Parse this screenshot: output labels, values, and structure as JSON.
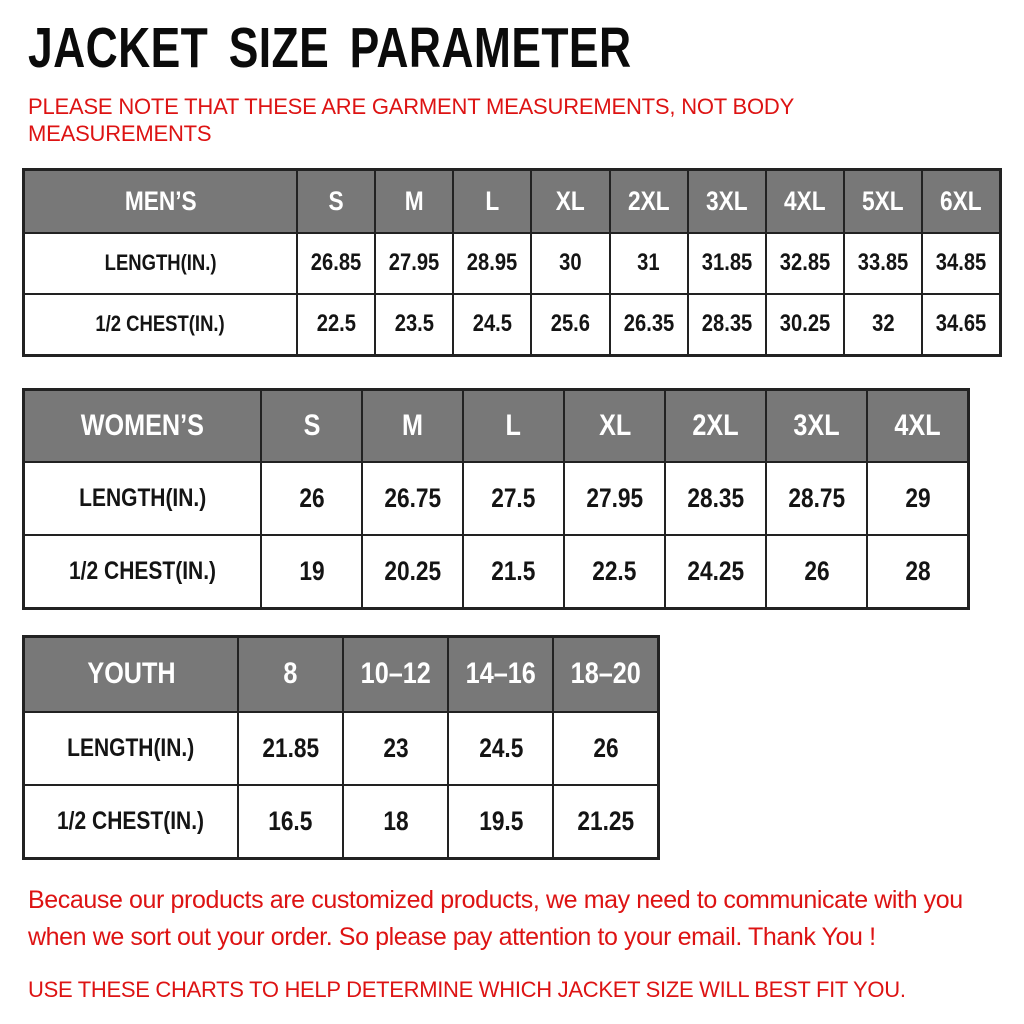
{
  "page": {
    "title": "JACKET SIZE PARAMETER",
    "subtitle": "PLEASE NOTE THAT THESE ARE GARMENT MEASUREMENTS, NOT BODY MEASUREMENTS",
    "footer_note_1": "Because our products are customized products, we may need to communicate with you when we sort out your order. So please pay attention to your email. Thank You !",
    "footer_note_2": "USE THESE CHARTS TO HELP DETERMINE WHICH JACKET SIZE WILL BEST FIT YOU.",
    "colors": {
      "accent_red": "#dd1313",
      "header_gray": "#787878",
      "border": "#222222",
      "text_black": "#0b0b0b"
    }
  },
  "tables": [
    {
      "name": "mens",
      "group_label": "MEN’S",
      "header": [
        "MEN’S",
        "S",
        "M",
        "L",
        "XL",
        "2XL",
        "3XL",
        "4XL",
        "5XL",
        "6XL"
      ],
      "rows": [
        {
          "label": "LENGTH(IN.)",
          "values": [
            "26.85",
            "27.95",
            "28.95",
            "30",
            "31",
            "31.85",
            "32.85",
            "33.85",
            "34.85"
          ]
        },
        {
          "label": "1/2 CHEST(IN.)",
          "values": [
            "22.5",
            "23.5",
            "24.5",
            "25.6",
            "26.35",
            "28.35",
            "30.25",
            "32",
            "34.65"
          ]
        }
      ]
    },
    {
      "name": "womens",
      "group_label": "WOMEN’S",
      "header": [
        "WOMEN’S",
        "S",
        "M",
        "L",
        "XL",
        "2XL",
        "3XL",
        "4XL"
      ],
      "rows": [
        {
          "label": "LENGTH(IN.)",
          "values": [
            "26",
            "26.75",
            "27.5",
            "27.95",
            "28.35",
            "28.75",
            "29"
          ]
        },
        {
          "label": "1/2 CHEST(IN.)",
          "values": [
            "19",
            "20.25",
            "21.5",
            "22.5",
            "24.25",
            "26",
            "28"
          ]
        }
      ]
    },
    {
      "name": "youth",
      "group_label": "YOUTH",
      "header": [
        "YOUTH",
        "8",
        "10–12",
        "14–16",
        "18–20"
      ],
      "rows": [
        {
          "label": "LENGTH(IN.)",
          "values": [
            "21.85",
            "23",
            "24.5",
            "26"
          ]
        },
        {
          "label": "1/2 CHEST(IN.)",
          "values": [
            "16.5",
            "18",
            "19.5",
            "21.25"
          ]
        }
      ]
    }
  ]
}
